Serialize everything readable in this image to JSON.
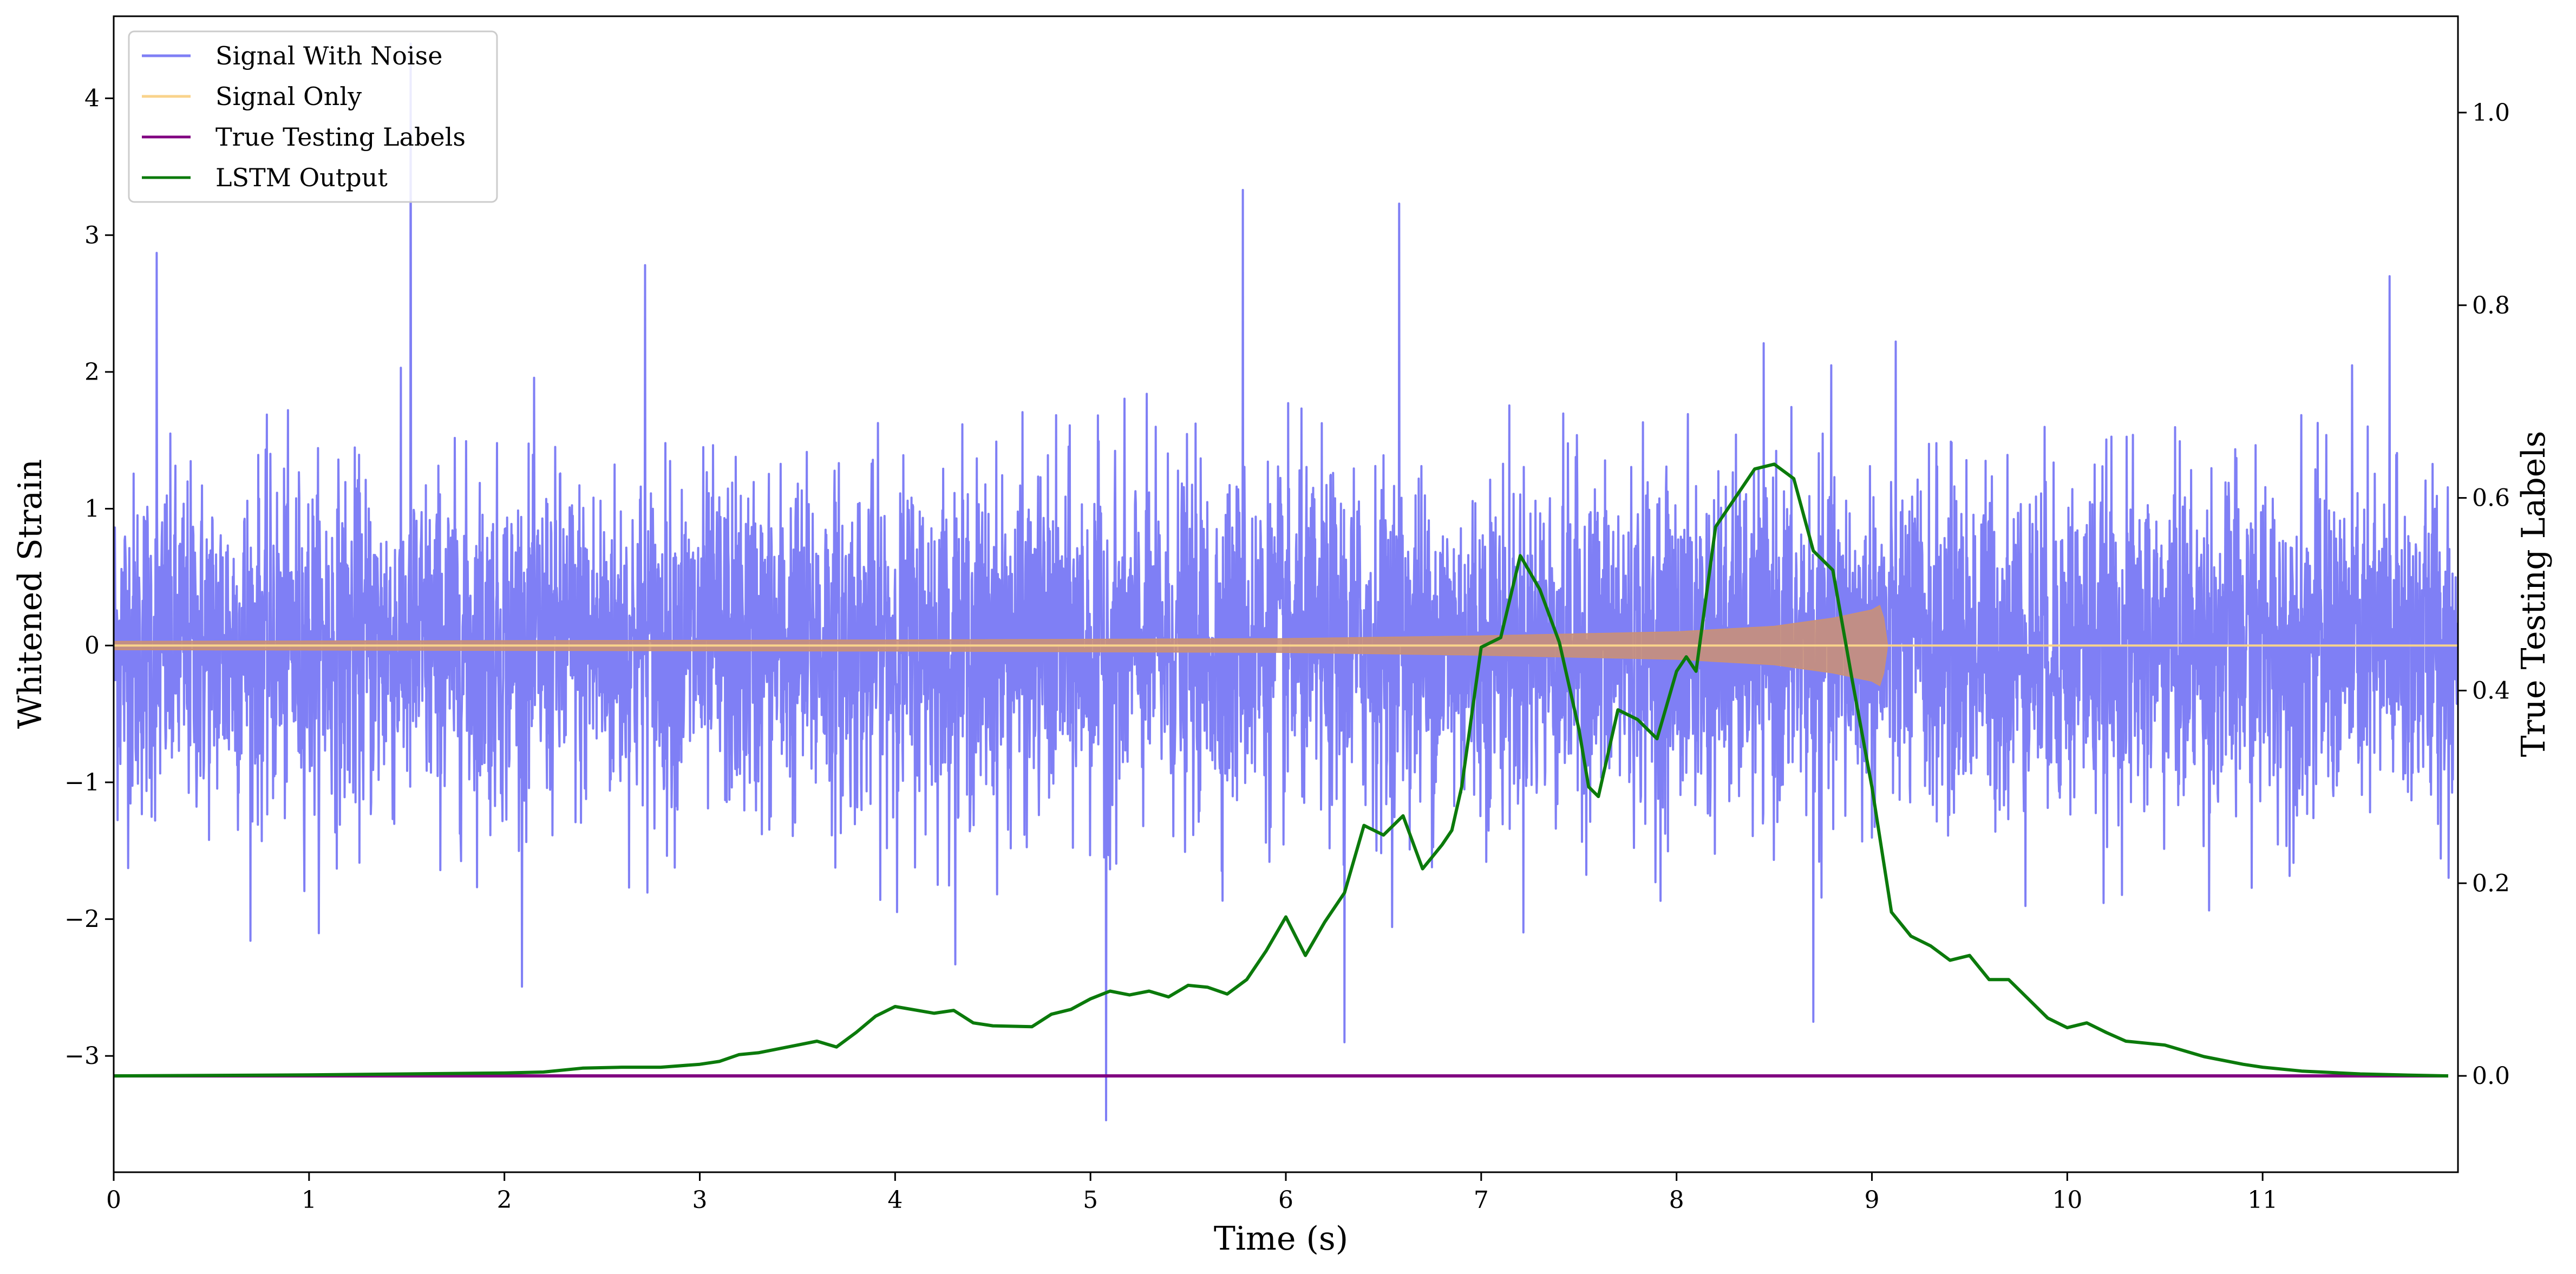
{
  "chart_data": {
    "type": "line",
    "title": "",
    "xlabel": "Time (s)",
    "ylabel_left": "Whitened Strain",
    "ylabel_right": "True Testing Labels",
    "xlim": [
      0,
      12
    ],
    "ylim_left": [
      -3.85,
      4.6
    ],
    "ylim_right": [
      -0.1,
      1.1
    ],
    "x_ticks": [
      0,
      1,
      2,
      3,
      4,
      5,
      6,
      7,
      8,
      9,
      10,
      11
    ],
    "x_tick_labels": [
      "0",
      "1",
      "2",
      "3",
      "4",
      "5",
      "6",
      "7",
      "8",
      "9",
      "10",
      "11"
    ],
    "left_ticks": [
      -3,
      -2,
      -1,
      0,
      1,
      2,
      3,
      4
    ],
    "left_tick_labels": [
      "−3",
      "−2",
      "−1",
      "0",
      "1",
      "2",
      "3",
      "4"
    ],
    "right_ticks": [
      0.0,
      0.2,
      0.4,
      0.6,
      0.8,
      1.0
    ],
    "right_tick_labels": [
      "0.0",
      "0.2",
      "0.4",
      "0.6",
      "0.8",
      "1.0"
    ],
    "grid": false,
    "legend": {
      "position": "top-left",
      "entries": [
        {
          "name": "Signal With Noise",
          "color": "#7f7ff5"
        },
        {
          "name": "Signal Only",
          "color": "#f9d38b"
        },
        {
          "name": "True Testing Labels",
          "color": "#800080"
        },
        {
          "name": "LSTM Output",
          "color": "#0b7a0b"
        }
      ]
    },
    "series": [
      {
        "name": "Signal With Noise",
        "axis": "left",
        "color": "#7f7ff5",
        "description_of_shape": "dense noise approx ±1.7 with spikes",
        "x_range": [
          0,
          12
        ],
        "notable_peaks": [
          {
            "x": 0.22,
            "y": 2.87
          },
          {
            "x": 1.52,
            "y": 4.4
          },
          {
            "x": 2.72,
            "y": 2.78
          },
          {
            "x": 5.08,
            "y": -3.47
          },
          {
            "x": 5.78,
            "y": 3.33
          },
          {
            "x": 6.3,
            "y": -2.9
          },
          {
            "x": 6.58,
            "y": 3.23
          },
          {
            "x": 8.7,
            "y": -2.75
          },
          {
            "x": 11.65,
            "y": 2.7
          }
        ]
      },
      {
        "name": "Signal Only",
        "axis": "left",
        "color": "#f9d38b",
        "description_of_shape": "chirp growing in amplitude until merger then zero",
        "envelope": {
          "x": [
            0,
            2,
            4,
            6,
            7,
            8,
            8.5,
            8.8,
            9.0,
            9.05,
            9.08,
            12
          ],
          "amplitude": [
            0.03,
            0.035,
            0.04,
            0.05,
            0.07,
            0.1,
            0.14,
            0.2,
            0.26,
            0.3,
            0.0,
            0.0
          ]
        }
      },
      {
        "name": "True Testing Labels",
        "axis": "right",
        "color": "#800080",
        "x": [
          0,
          11.95
        ],
        "y": [
          0,
          0
        ]
      },
      {
        "name": "LSTM Output",
        "axis": "right",
        "color": "#0b7a0b",
        "x": [
          0,
          1,
          2,
          2.2,
          2.4,
          2.6,
          2.8,
          3.0,
          3.1,
          3.2,
          3.3,
          3.5,
          3.6,
          3.7,
          3.8,
          3.9,
          4.0,
          4.2,
          4.3,
          4.4,
          4.5,
          4.7,
          4.8,
          4.9,
          5.0,
          5.1,
          5.2,
          5.3,
          5.4,
          5.5,
          5.6,
          5.7,
          5.8,
          5.9,
          6.0,
          6.05,
          6.1,
          6.2,
          6.3,
          6.4,
          6.5,
          6.6,
          6.7,
          6.8,
          6.85,
          6.9,
          7.0,
          7.1,
          7.2,
          7.3,
          7.4,
          7.5,
          7.55,
          7.6,
          7.7,
          7.8,
          7.9,
          8.0,
          8.05,
          8.1,
          8.2,
          8.3,
          8.4,
          8.5,
          8.6,
          8.7,
          8.8,
          8.9,
          9.0,
          9.1,
          9.2,
          9.3,
          9.4,
          9.5,
          9.6,
          9.7,
          9.8,
          9.9,
          10.0,
          10.1,
          10.2,
          10.3,
          10.5,
          10.7,
          10.9,
          11.0,
          11.2,
          11.5,
          11.7,
          11.95
        ],
        "y": [
          0.0,
          0.001,
          0.003,
          0.004,
          0.008,
          0.009,
          0.009,
          0.012,
          0.015,
          0.022,
          0.024,
          0.032,
          0.036,
          0.03,
          0.045,
          0.062,
          0.072,
          0.065,
          0.068,
          0.055,
          0.052,
          0.051,
          0.064,
          0.069,
          0.08,
          0.088,
          0.084,
          0.088,
          0.082,
          0.094,
          0.092,
          0.085,
          0.1,
          0.13,
          0.165,
          0.145,
          0.125,
          0.16,
          0.19,
          0.26,
          0.25,
          0.27,
          0.215,
          0.24,
          0.255,
          0.3,
          0.445,
          0.455,
          0.54,
          0.505,
          0.45,
          0.36,
          0.3,
          0.29,
          0.38,
          0.37,
          0.35,
          0.42,
          0.435,
          0.42,
          0.57,
          0.6,
          0.63,
          0.635,
          0.62,
          0.545,
          0.525,
          0.41,
          0.3,
          0.17,
          0.145,
          0.135,
          0.12,
          0.125,
          0.1,
          0.1,
          0.08,
          0.06,
          0.05,
          0.055,
          0.045,
          0.036,
          0.032,
          0.02,
          0.012,
          0.009,
          0.005,
          0.002,
          0.001,
          0.0
        ]
      }
    ]
  }
}
